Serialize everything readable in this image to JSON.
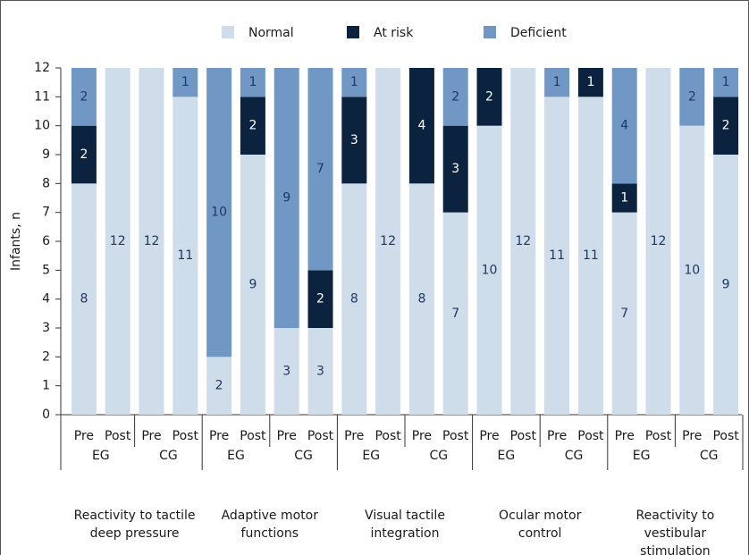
{
  "chart_data": {
    "type": "stacked_bar",
    "ylabel": "Infants, n",
    "categories": [
      "Pre",
      "Post",
      "Pre",
      "Post",
      "Pre",
      "Post",
      "Pre",
      "Post",
      "Pre",
      "Post",
      "Pre",
      "Post",
      "Pre",
      "Post",
      "Pre",
      "Post",
      "Pre",
      "Post",
      "Pre",
      "Post"
    ],
    "subgroups": [
      "EG",
      "CG",
      "EG",
      "CG",
      "EG",
      "CG",
      "EG",
      "CG",
      "EG",
      "CG"
    ],
    "groups": [
      [
        "Reactivity to tactile",
        "deep pressure"
      ],
      [
        "Adaptive motor",
        "functions"
      ],
      [
        "Visual tactile",
        "integration"
      ],
      [
        "Ocular motor",
        "control"
      ],
      [
        "Reactivity to",
        "vestibular",
        "stimulation"
      ]
    ],
    "series": [
      {
        "name": "Normal",
        "color": "#cfdce9",
        "values": [
          8,
          12,
          12,
          11,
          2,
          9,
          3,
          3,
          8,
          12,
          8,
          7,
          10,
          12,
          11,
          11,
          7,
          12,
          10,
          9
        ]
      },
      {
        "name": "At risk",
        "color": "#0c2340",
        "values": [
          2,
          0,
          0,
          0,
          0,
          2,
          0,
          2,
          3,
          0,
          4,
          3,
          2,
          0,
          0,
          1,
          1,
          0,
          0,
          2
        ]
      },
      {
        "name": "Deficient",
        "color": "#7198c4",
        "values": [
          2,
          0,
          0,
          1,
          10,
          1,
          9,
          7,
          1,
          0,
          0,
          2,
          0,
          0,
          1,
          0,
          4,
          0,
          2,
          1
        ]
      }
    ],
    "ylim": [
      0,
      12
    ],
    "yticks": [
      0,
      1,
      2,
      3,
      4,
      5,
      6,
      7,
      8,
      9,
      10,
      11,
      12
    ],
    "legend": "top"
  }
}
